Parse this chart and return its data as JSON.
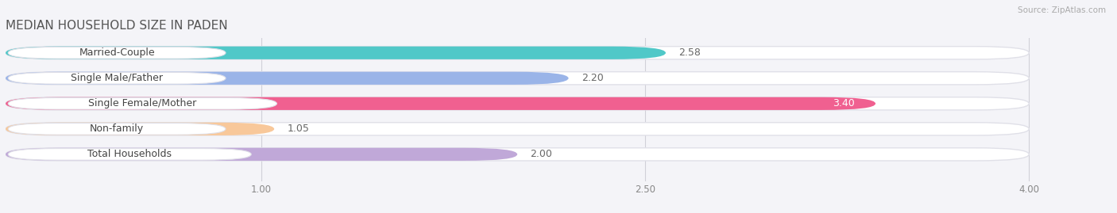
{
  "title": "MEDIAN HOUSEHOLD SIZE IN PADEN",
  "source": "Source: ZipAtlas.com",
  "categories": [
    "Married-Couple",
    "Single Male/Father",
    "Single Female/Mother",
    "Non-family",
    "Total Households"
  ],
  "values": [
    2.58,
    2.2,
    3.4,
    1.05,
    2.0
  ],
  "bar_colors": [
    "#50c8c8",
    "#9ab4e8",
    "#f06090",
    "#f8c89a",
    "#c0a8d8"
  ],
  "label_bg_colors": [
    "#50c8c8",
    "#9ab4e8",
    "#f06090",
    "#f8c89a",
    "#c0a8d8"
  ],
  "xlim_min": 0.0,
  "xlim_max": 4.3,
  "data_max": 4.0,
  "xticks": [
    1.0,
    2.5,
    4.0
  ],
  "background_color": "#f4f4f8",
  "row_bg_color": "#ffffff",
  "row_bg_edge": "#e0e0e8",
  "title_fontsize": 11,
  "label_fontsize": 9,
  "value_fontsize": 9,
  "value_color_inside": "#ffffff",
  "value_color_outside": "#666666"
}
